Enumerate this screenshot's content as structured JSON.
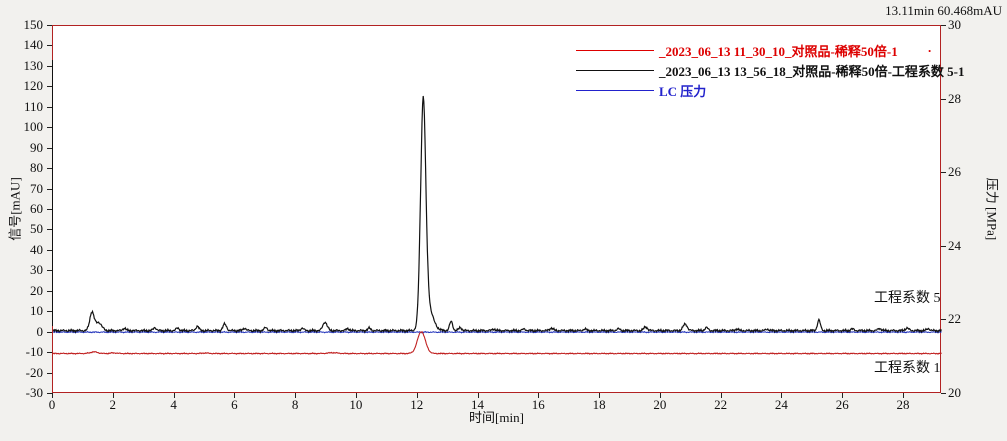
{
  "readout": "13.11min 60.468mAU",
  "legend": {
    "trailing_dot": "."
  },
  "right_labels": {
    "upper": "工程系数 5",
    "lower": "工程系数 1"
  },
  "chart_data": {
    "type": "line",
    "title": "",
    "x_axis": {
      "label": "时间[min]",
      "min": 0,
      "max": 29.25,
      "ticks": [
        0,
        2,
        4,
        6,
        8,
        10,
        12,
        14,
        16,
        18,
        20,
        22,
        24,
        26,
        28
      ]
    },
    "y_axis_left": {
      "label": "信号[mAU]",
      "min": -30,
      "max": 150,
      "ticks": [
        150,
        140,
        130,
        120,
        110,
        100,
        90,
        80,
        70,
        60,
        50,
        40,
        30,
        20,
        10,
        0,
        -10,
        -20,
        -30
      ]
    },
    "y_axis_right": {
      "label": "压力 [MPa]",
      "min": 20,
      "max": 30,
      "ticks": [
        30,
        28,
        26,
        24,
        22,
        20
      ]
    },
    "frame_color": "#b22222",
    "grid": false,
    "legend_position": "top-right",
    "annotation": "13.11min 60.468mAU",
    "series": [
      {
        "id": "sample-1",
        "name": "_2023_06_13 11_30_10_对照品-稀释50倍-1",
        "color": "#c02020",
        "legend_color": "#dd0000",
        "axis": "left",
        "z": 1,
        "stroke": 1.1,
        "noise": 0.3,
        "baseline": -10.2,
        "peaks": [
          {
            "t": 1.35,
            "h": 0.8,
            "w": 0.12
          },
          {
            "t": 2.0,
            "h": 0.3,
            "w": 0.1
          },
          {
            "t": 5.0,
            "h": 0.25,
            "w": 0.1
          },
          {
            "t": 9.2,
            "h": 0.4,
            "w": 0.15
          },
          {
            "t": 12.12,
            "h": 10.7,
            "w": 0.13
          }
        ]
      },
      {
        "id": "sample-2",
        "name": "_2023_06_13 13_56_18_对照品-稀释50倍-工程系数 5-1",
        "color": "#111111",
        "legend_color": "#111111",
        "axis": "left",
        "z": 2,
        "stroke": 1.2,
        "noise": 0.7,
        "baseline": 1.0,
        "peaks": [
          {
            "t": 1.28,
            "h": 9.0,
            "w": 0.07
          },
          {
            "t": 1.5,
            "h": 4.0,
            "w": 0.1
          },
          {
            "t": 2.35,
            "h": 1.2,
            "w": 0.05
          },
          {
            "t": 3.35,
            "h": 1.5,
            "w": 0.05
          },
          {
            "t": 4.1,
            "h": 1.3,
            "w": 0.05
          },
          {
            "t": 4.75,
            "h": 2.2,
            "w": 0.05
          },
          {
            "t": 5.65,
            "h": 3.2,
            "w": 0.06
          },
          {
            "t": 6.3,
            "h": 1.2,
            "w": 0.05
          },
          {
            "t": 7.0,
            "h": 1.5,
            "w": 0.05
          },
          {
            "t": 8.2,
            "h": 1.2,
            "w": 0.05
          },
          {
            "t": 8.95,
            "h": 4.2,
            "w": 0.07
          },
          {
            "t": 9.7,
            "h": 1.0,
            "w": 0.05
          },
          {
            "t": 10.4,
            "h": 1.2,
            "w": 0.05
          },
          {
            "t": 12.18,
            "h": 108,
            "w": 0.085
          },
          {
            "t": 12.34,
            "h": 11,
            "w": 0.16
          },
          {
            "t": 13.1,
            "h": 4.5,
            "w": 0.05
          },
          {
            "t": 13.4,
            "h": 1.5,
            "w": 0.05
          },
          {
            "t": 14.5,
            "h": 0.8,
            "w": 0.05
          },
          {
            "t": 15.5,
            "h": 0.8,
            "w": 0.05
          },
          {
            "t": 16.4,
            "h": 1.2,
            "w": 0.06
          },
          {
            "t": 17.5,
            "h": 0.8,
            "w": 0.05
          },
          {
            "t": 18.6,
            "h": 0.9,
            "w": 0.05
          },
          {
            "t": 19.5,
            "h": 1.8,
            "w": 0.06
          },
          {
            "t": 20.8,
            "h": 3.2,
            "w": 0.07
          },
          {
            "t": 21.5,
            "h": 1.5,
            "w": 0.05
          },
          {
            "t": 22.5,
            "h": 0.8,
            "w": 0.05
          },
          {
            "t": 23.5,
            "h": 0.7,
            "w": 0.05
          },
          {
            "t": 25.2,
            "h": 5.2,
            "w": 0.05
          },
          {
            "t": 26.3,
            "h": 0.8,
            "w": 0.05
          },
          {
            "t": 27.2,
            "h": 1.0,
            "w": 0.06
          },
          {
            "t": 28.1,
            "h": 1.2,
            "w": 0.06
          },
          {
            "t": 28.8,
            "h": 1.0,
            "w": 0.05
          }
        ]
      },
      {
        "id": "lc-pressure",
        "name": "LC 压力",
        "color": "#2233bb",
        "legend_color": "#2222cc",
        "axis": "right",
        "z": 0,
        "stroke": 1.0,
        "noise": 0.02,
        "baseline": 21.68,
        "peaks": []
      }
    ],
    "series_labels_right": [
      "工程系数 5",
      "工程系数 1"
    ]
  }
}
